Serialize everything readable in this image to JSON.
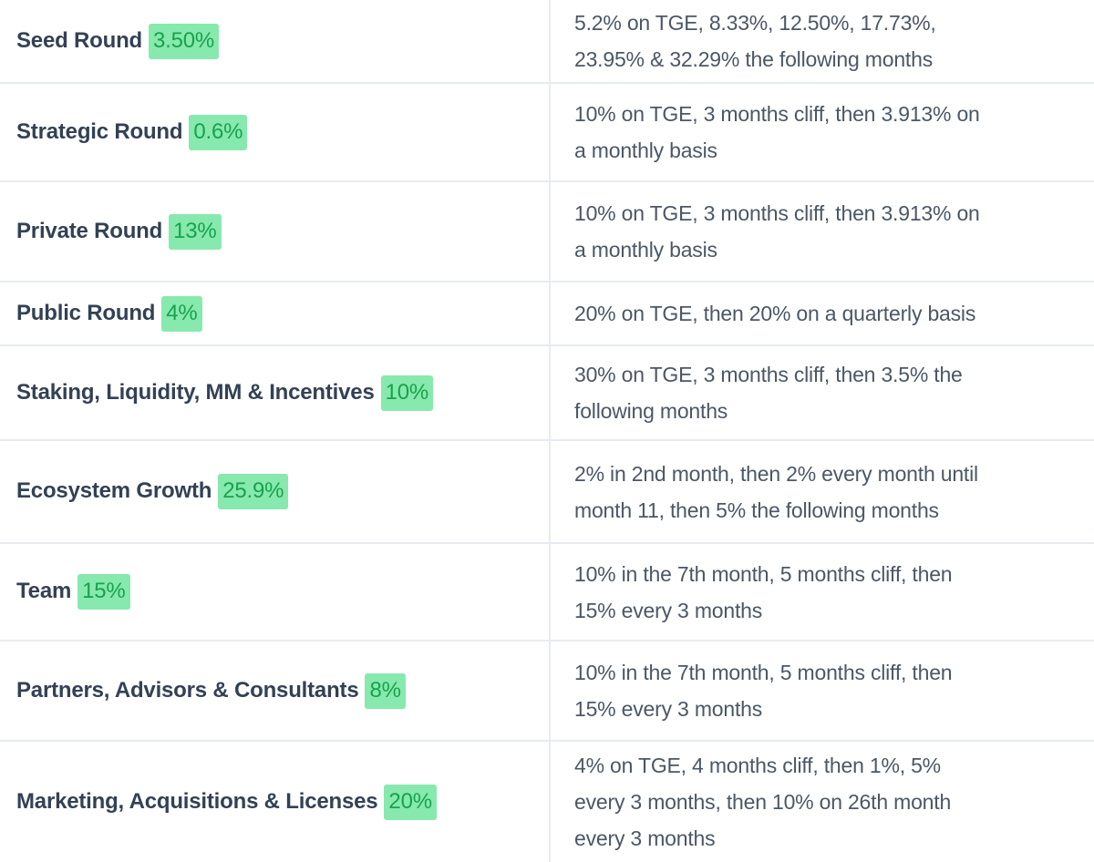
{
  "colors": {
    "highlight_bg": "#87e9ae",
    "highlight_text": "#17a34a",
    "label_color": "#334155",
    "text_color": "#4b5766",
    "border_color": "#e7ebf1",
    "page_bg": "#ffffff"
  },
  "table": {
    "rows": [
      {
        "category": "Seed Round",
        "allocation": "3.50%",
        "schedule": [
          "5.2% on TGE, 8.33%, 12.50%, 17.73%,",
          "23.95% & 32.29% the following months"
        ]
      },
      {
        "category": "Strategic Round",
        "allocation": "0.6%",
        "schedule": [
          "10% on TGE, 3 months cliff, then 3.913% on",
          "a monthly basis"
        ]
      },
      {
        "category": "Private Round",
        "allocation": "13%",
        "schedule": [
          "10% on TGE, 3 months cliff, then 3.913% on",
          "a monthly basis"
        ]
      },
      {
        "category": "Public Round",
        "allocation": "4%",
        "schedule": [
          "20% on TGE, then 20% on a quarterly basis"
        ]
      },
      {
        "category": "Staking, Liquidity, MM & Incentives",
        "allocation": "10%",
        "schedule": [
          "30% on TGE, 3 months cliff, then 3.5% the",
          "following months"
        ]
      },
      {
        "category": "Ecosystem Growth",
        "allocation": "25.9%",
        "schedule": [
          "2% in 2nd month, then 2% every month until",
          "month 11, then 5% the following months"
        ]
      },
      {
        "category": "Team",
        "allocation": "15%",
        "schedule": [
          "10% in the 7th month, 5 months cliff, then",
          "15% every 3 months"
        ]
      },
      {
        "category": "Partners, Advisors & Consultants",
        "allocation": "8%",
        "schedule": [
          "10% in the 7th month, 5 months cliff, then",
          "15% every 3 months"
        ]
      },
      {
        "category": "Marketing, Acquisitions & Licenses",
        "allocation": "20%",
        "schedule": [
          "4% on TGE, 4 months cliff, then 1%, 5%",
          "every 3 months, then 10% on 26th month",
          "every 3 months"
        ]
      }
    ]
  }
}
